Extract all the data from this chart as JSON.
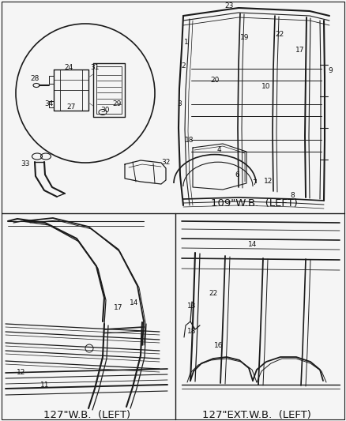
{
  "bg_color": "#f5f5f5",
  "line_color": "#1a1a1a",
  "label_color": "#111111",
  "label_fontsize": 6.5,
  "caption_fontsize": 9.5,
  "fig_width": 4.38,
  "fig_height": 5.33,
  "dpi": 100,
  "section_labels": {
    "top_right": "109\"W.B.  (LEFT)",
    "bottom_left": "127\"W.B.  (LEFT)",
    "bottom_right": "127\"EXT.W.B.  (LEFT)"
  }
}
